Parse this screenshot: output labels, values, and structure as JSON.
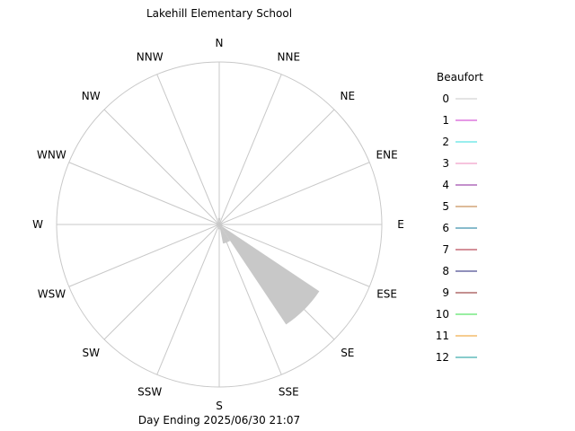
{
  "chart_data": {
    "type": "wind-rose",
    "title": "Lakehill Elementary School",
    "subtitle": "Day Ending 2025/06/30 21:07",
    "directions": [
      "N",
      "NNE",
      "NE",
      "ENE",
      "E",
      "ESE",
      "SE",
      "SSE",
      "S",
      "SSW",
      "SW",
      "WSW",
      "W",
      "WNW",
      "NW",
      "NNW"
    ],
    "grid": true,
    "legend": {
      "title": "Beaufort",
      "placement": "right",
      "items": [
        {
          "label": "0",
          "color": "#c8c8c8"
        },
        {
          "label": "1",
          "color": "#cc33cc"
        },
        {
          "label": "2",
          "color": "#33dddd"
        },
        {
          "label": "3",
          "color": "#ee88bb"
        },
        {
          "label": "4",
          "color": "#882299"
        },
        {
          "label": "5",
          "color": "#bb7733"
        },
        {
          "label": "6",
          "color": "#117799"
        },
        {
          "label": "7",
          "color": "#aa2233"
        },
        {
          "label": "8",
          "color": "#222277"
        },
        {
          "label": "9",
          "color": "#882222"
        },
        {
          "label": "10",
          "color": "#33dd44"
        },
        {
          "label": "11",
          "color": "#ee9922"
        },
        {
          "label": "12",
          "color": "#119999"
        }
      ]
    },
    "series": [
      {
        "beaufort": 0,
        "color": "#c8c8c8",
        "values": [
          0.04,
          0.01,
          0.01,
          0.01,
          0.01,
          0.02,
          0.74,
          0.12,
          0.03,
          0.01,
          0.01,
          0.01,
          0.01,
          0.01,
          0.01,
          0.01
        ]
      }
    ],
    "rlim": [
      0,
      1
    ]
  }
}
